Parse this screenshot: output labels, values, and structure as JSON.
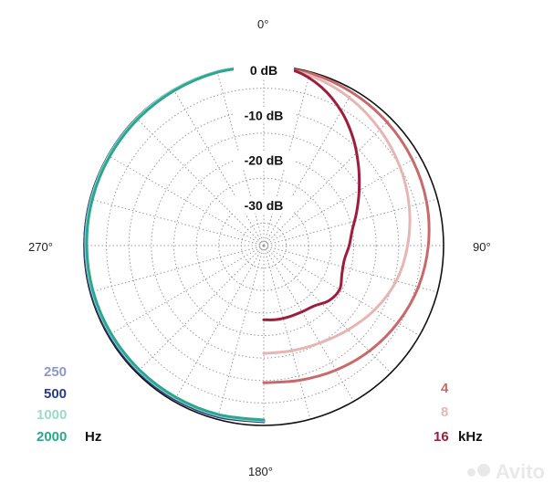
{
  "chart_data": {
    "type": "polar-line",
    "radial_axis": {
      "ticks": [
        0,
        -10,
        -20,
        -30
      ],
      "tick_labels": [
        "0 dB",
        "-10 dB",
        "-20 dB",
        "-30 dB"
      ],
      "range": [
        -40,
        0
      ],
      "grid": true
    },
    "angular_axis": {
      "labels": [
        "0°",
        "90°",
        "180°",
        "270°"
      ],
      "grid_step_deg": 15
    },
    "legend_low": {
      "unit": "Hz",
      "entries": [
        {
          "name": "250",
          "color": "#8e97c6"
        },
        {
          "name": "500",
          "color": "#2c3b86"
        },
        {
          "name": "1000",
          "color": "#9fd9c9"
        },
        {
          "name": "2000",
          "color": "#29a88e"
        }
      ]
    },
    "legend_high": {
      "unit": "kHz",
      "entries": [
        {
          "name": "4",
          "color": "#c86a6c"
        },
        {
          "name": "8",
          "color": "#e5b6b3"
        },
        {
          "name": "16",
          "color": "#9e1c3c"
        }
      ]
    },
    "series": [
      {
        "name": "250",
        "color": "#8e97c6",
        "points": [
          [
            180,
            -0.9
          ],
          [
            195,
            -0.7
          ],
          [
            210,
            -0.6
          ],
          [
            225,
            -0.5
          ],
          [
            240,
            -0.4
          ],
          [
            255,
            -0.3
          ],
          [
            270,
            -0.2
          ],
          [
            285,
            -0.2
          ],
          [
            300,
            -0.1
          ],
          [
            315,
            0
          ],
          [
            330,
            0
          ],
          [
            345,
            0
          ],
          [
            360,
            0
          ]
        ]
      },
      {
        "name": "500",
        "color": "#2c3b86",
        "points": [
          [
            180,
            -0.8
          ],
          [
            195,
            -0.6
          ],
          [
            210,
            -0.5
          ],
          [
            225,
            -0.4
          ],
          [
            240,
            -0.3
          ],
          [
            255,
            -0.3
          ],
          [
            270,
            -0.2
          ],
          [
            285,
            -0.1
          ],
          [
            300,
            -0.1
          ],
          [
            315,
            0
          ],
          [
            330,
            0
          ],
          [
            345,
            0
          ],
          [
            360,
            0
          ]
        ]
      },
      {
        "name": "1000",
        "color": "#9fd9c9",
        "points": [
          [
            180,
            -1.0
          ],
          [
            195,
            -0.9
          ],
          [
            210,
            -0.8
          ],
          [
            225,
            -0.7
          ],
          [
            240,
            -0.6
          ],
          [
            255,
            -0.5
          ],
          [
            270,
            -0.4
          ],
          [
            285,
            -0.3
          ],
          [
            300,
            -0.2
          ],
          [
            315,
            -0.1
          ],
          [
            330,
            0
          ],
          [
            345,
            0
          ],
          [
            360,
            0
          ]
        ]
      },
      {
        "name": "2000",
        "color": "#29a88e",
        "points": [
          [
            180,
            -1.2
          ],
          [
            195,
            -1.1
          ],
          [
            210,
            -1.0
          ],
          [
            225,
            -0.9
          ],
          [
            240,
            -0.8
          ],
          [
            255,
            -0.7
          ],
          [
            270,
            -0.6
          ],
          [
            285,
            -0.5
          ],
          [
            300,
            -0.4
          ],
          [
            315,
            -0.3
          ],
          [
            330,
            -0.2
          ],
          [
            345,
            -0.1
          ],
          [
            360,
            0
          ]
        ]
      },
      {
        "name": "4",
        "color": "#c86a6c",
        "points": [
          [
            0,
            0
          ],
          [
            15,
            -0.3
          ],
          [
            30,
            -0.7
          ],
          [
            45,
            -1.2
          ],
          [
            60,
            -1.8
          ],
          [
            75,
            -2.5
          ],
          [
            90,
            -3.4
          ],
          [
            105,
            -4.4
          ],
          [
            120,
            -5.6
          ],
          [
            135,
            -6.8
          ],
          [
            150,
            -8.0
          ],
          [
            165,
            -9.0
          ],
          [
            180,
            -9.5
          ]
        ]
      },
      {
        "name": "8",
        "color": "#e5b6b3",
        "points": [
          [
            0,
            0
          ],
          [
            15,
            -0.8
          ],
          [
            30,
            -2.0
          ],
          [
            45,
            -3.5
          ],
          [
            60,
            -5.0
          ],
          [
            75,
            -6.5
          ],
          [
            90,
            -8.0
          ],
          [
            105,
            -9.5
          ],
          [
            120,
            -11.5
          ],
          [
            135,
            -13.5
          ],
          [
            150,
            -15.0
          ],
          [
            165,
            -15.8
          ],
          [
            180,
            -16.0
          ]
        ]
      },
      {
        "name": "16",
        "color": "#9e1c3c",
        "points": [
          [
            0,
            0
          ],
          [
            10,
            -0.5
          ],
          [
            20,
            -2.5
          ],
          [
            30,
            -5.5
          ],
          [
            40,
            -9.0
          ],
          [
            50,
            -12.5
          ],
          [
            60,
            -15.5
          ],
          [
            70,
            -18.0
          ],
          [
            80,
            -20.0
          ],
          [
            90,
            -21.0
          ],
          [
            100,
            -21.8
          ],
          [
            110,
            -21.5
          ],
          [
            120,
            -20.5
          ],
          [
            130,
            -21.0
          ],
          [
            140,
            -22.5
          ],
          [
            150,
            -23.0
          ],
          [
            160,
            -23.2
          ],
          [
            170,
            -23.3
          ],
          [
            180,
            -23.5
          ]
        ]
      }
    ]
  }
}
